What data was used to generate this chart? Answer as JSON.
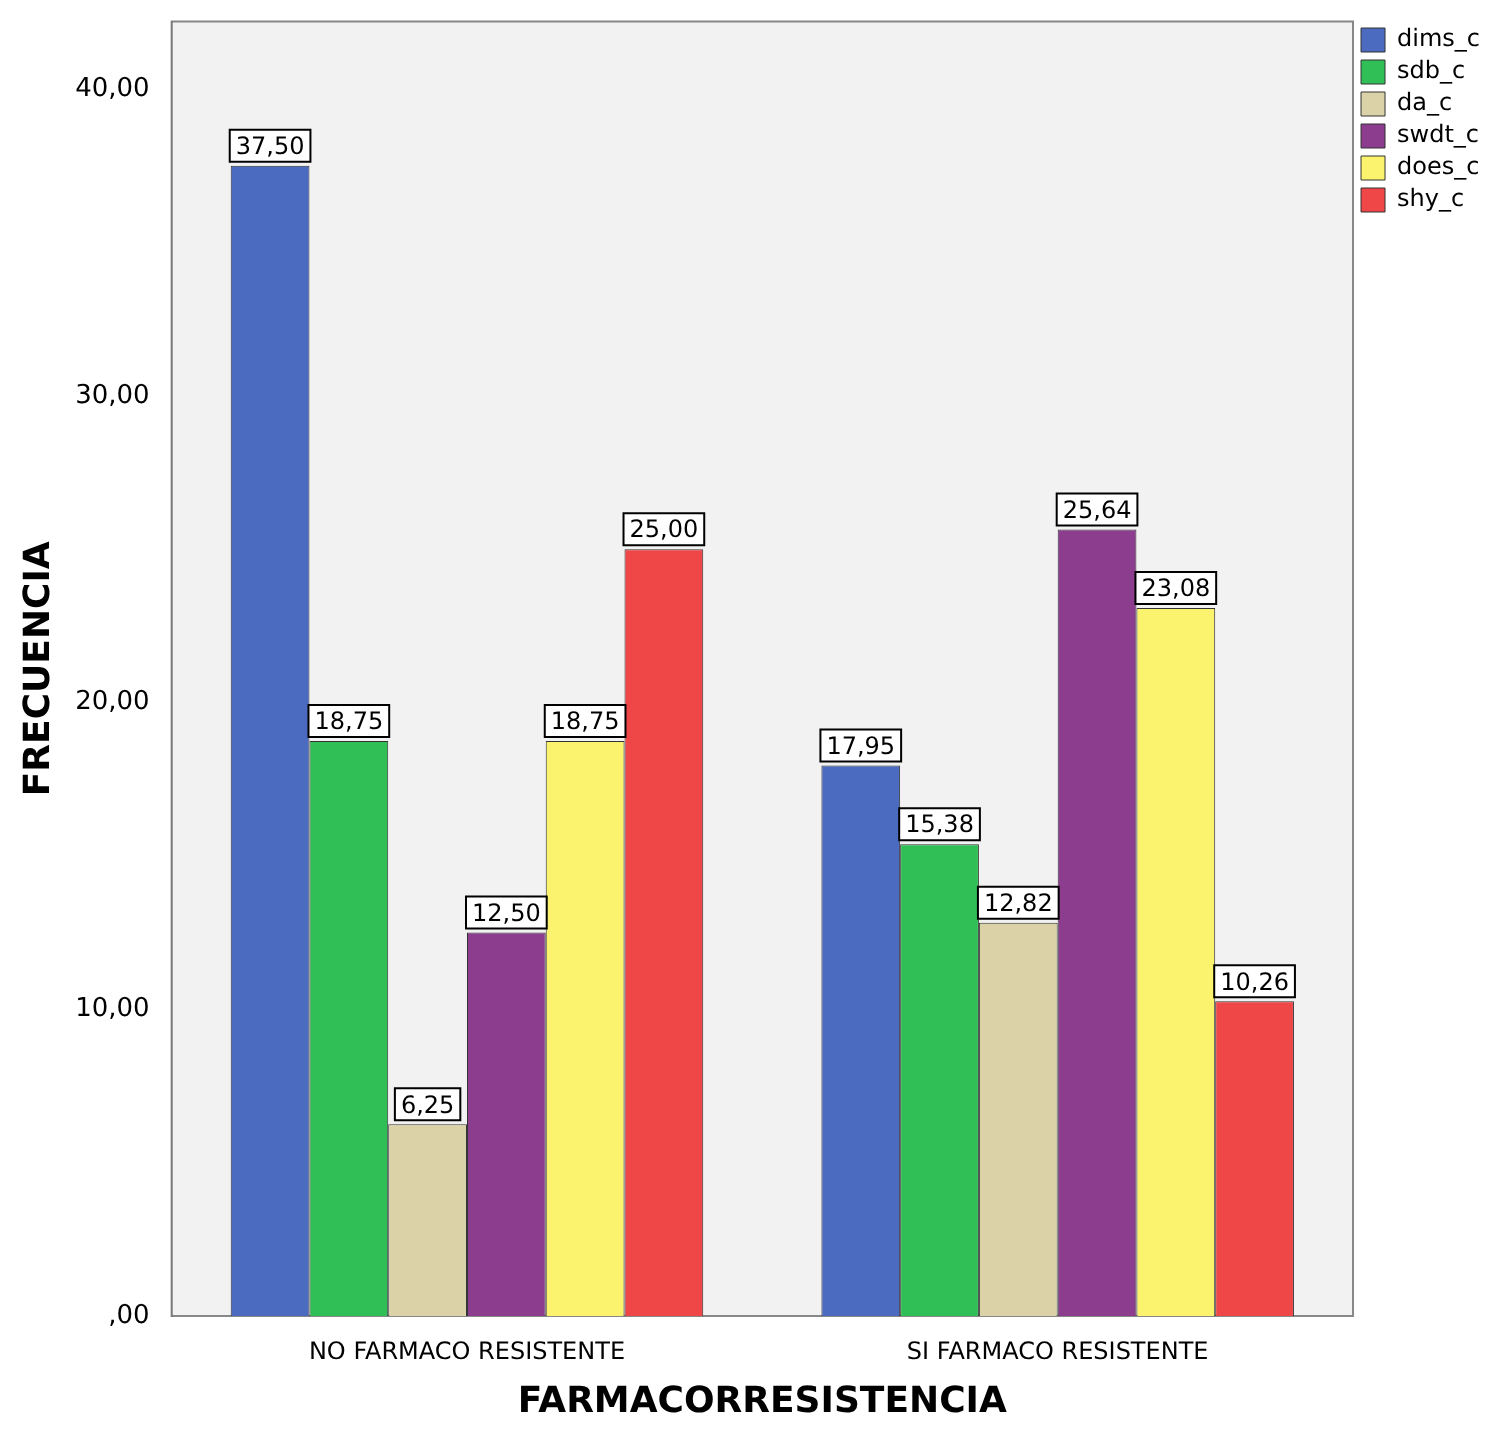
{
  "chart_data": {
    "type": "bar",
    "xlabel": "FARMACORRESISTENCIA",
    "ylabel": "FRECUENCIA",
    "categories": [
      "NO FARMACO RESISTENTE",
      "SI FARMACO RESISTENTE"
    ],
    "ylim": [
      0,
      42.2
    ],
    "yticks": [
      {
        "value": 0,
        "label": ",00"
      },
      {
        "value": 10,
        "label": "10,00"
      },
      {
        "value": 20,
        "label": "20,00"
      },
      {
        "value": 30,
        "label": "30,00"
      },
      {
        "value": 40,
        "label": "40,00"
      }
    ],
    "grid": false,
    "legend": "top right",
    "series": [
      {
        "name": "dims_c",
        "color": "#4a6bbf",
        "values": [
          37.5,
          17.95
        ],
        "value_labels": [
          "37,50",
          "17,95"
        ]
      },
      {
        "name": "sdb_c",
        "color": "#30bf57",
        "values": [
          18.75,
          15.38
        ],
        "value_labels": [
          "18,75",
          "15,38"
        ]
      },
      {
        "name": "da_c",
        "color": "#dbd2a8",
        "values": [
          6.25,
          12.82
        ],
        "value_labels": [
          "6,25",
          "12,82"
        ]
      },
      {
        "name": "swdt_c",
        "color": "#8c3d8e",
        "values": [
          12.5,
          25.64
        ],
        "value_labels": [
          "12,50",
          "25,64"
        ]
      },
      {
        "name": "does_c",
        "color": "#fbf36e",
        "values": [
          18.75,
          23.08
        ],
        "value_labels": [
          "18,75",
          "23,08"
        ]
      },
      {
        "name": "shy_c",
        "color": "#ef4747",
        "values": [
          25,
          10.26
        ],
        "value_labels": [
          "25,00",
          "10,26"
        ]
      }
    ]
  }
}
